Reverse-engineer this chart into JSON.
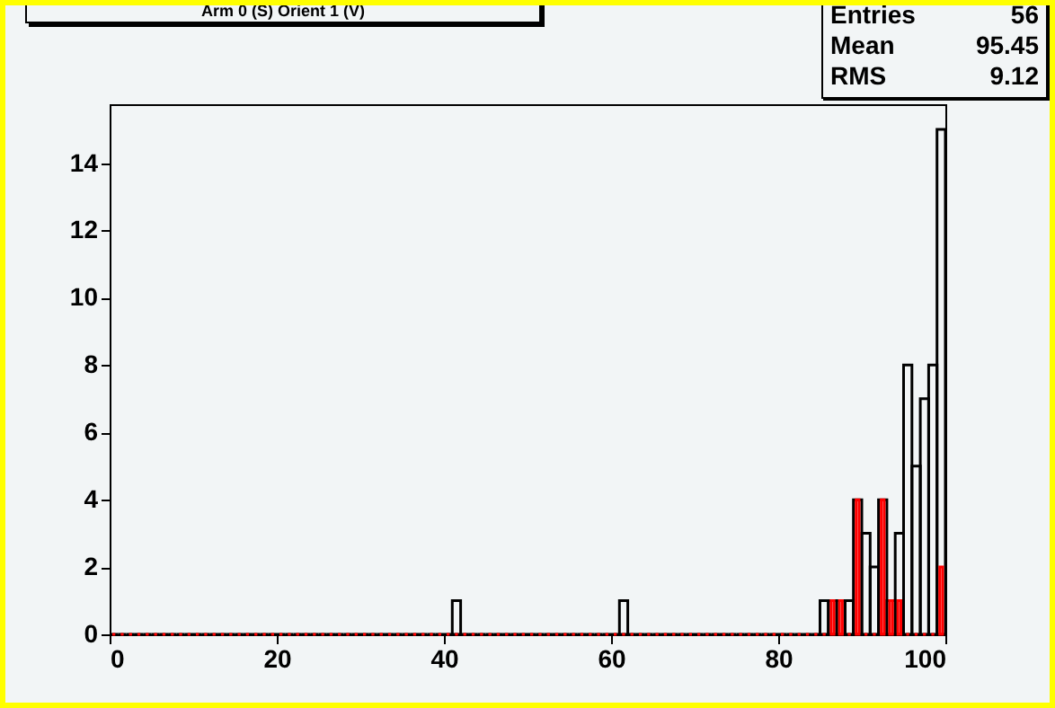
{
  "chart_data": {
    "type": "histogram",
    "title": "Arm 0 (S) Orient 1 (V)",
    "annotations": [
      "Entries 56",
      "Mean 95.45",
      "RMS 9.12"
    ],
    "bins": [
      0,
      1,
      2,
      3,
      4,
      5,
      6,
      7,
      8,
      9,
      10,
      11,
      12,
      13,
      14,
      15,
      16,
      17,
      18,
      19,
      20,
      21,
      22,
      23,
      24,
      25,
      26,
      27,
      28,
      29,
      30,
      31,
      32,
      33,
      34,
      35,
      36,
      37,
      38,
      39,
      40,
      41,
      42,
      43,
      44,
      45,
      46,
      47,
      48,
      49,
      50,
      51,
      52,
      53,
      54,
      55,
      56,
      57,
      58,
      59,
      60,
      61,
      62,
      63,
      64,
      65,
      66,
      67,
      68,
      69,
      70,
      71,
      72,
      73,
      74,
      75,
      76,
      77,
      78,
      79,
      80,
      81,
      82,
      83,
      84,
      85,
      86,
      87,
      88,
      89,
      90,
      91,
      92,
      93,
      94,
      95,
      96,
      97,
      98,
      99,
      100
    ],
    "series": [
      {
        "color": "#000000",
        "values": [
          0,
          0,
          0,
          0,
          0,
          0,
          0,
          0,
          0,
          0,
          0,
          0,
          0,
          0,
          0,
          0,
          0,
          0,
          0,
          0,
          0,
          0,
          0,
          0,
          0,
          0,
          0,
          0,
          0,
          0,
          0,
          0,
          0,
          0,
          0,
          0,
          0,
          0,
          0,
          0,
          0,
          1,
          0,
          0,
          0,
          0,
          0,
          0,
          0,
          0,
          0,
          0,
          0,
          0,
          0,
          0,
          0,
          0,
          0,
          0,
          0,
          1,
          0,
          0,
          0,
          0,
          0,
          0,
          0,
          0,
          0,
          0,
          0,
          0,
          0,
          0,
          0,
          0,
          0,
          0,
          0,
          0,
          0,
          0,
          0,
          1,
          1,
          1,
          1,
          4,
          3,
          2,
          4,
          1,
          3,
          8,
          5,
          7,
          8,
          15
        ]
      },
      {
        "color": "#ff0000",
        "values": [
          0,
          0,
          0,
          0,
          0,
          0,
          0,
          0,
          0,
          0,
          0,
          0,
          0,
          0,
          0,
          0,
          0,
          0,
          0,
          0,
          0,
          0,
          0,
          0,
          0,
          0,
          0,
          0,
          0,
          0,
          0,
          0,
          0,
          0,
          0,
          0,
          0,
          0,
          0,
          0,
          0,
          0,
          0,
          0,
          0,
          0,
          0,
          0,
          0,
          0,
          0,
          0,
          0,
          0,
          0,
          0,
          0,
          0,
          0,
          0,
          0,
          0,
          0,
          0,
          0,
          0,
          0,
          0,
          0,
          0,
          0,
          0,
          0,
          0,
          0,
          0,
          0,
          0,
          0,
          0,
          0,
          0,
          0,
          0,
          0,
          0,
          1,
          1,
          0,
          4,
          0,
          0,
          4,
          1,
          1,
          0,
          0,
          0,
          0,
          2
        ]
      }
    ],
    "xlim": [
      0,
      100
    ],
    "xticks": [
      0,
      20,
      40,
      60,
      80,
      100
    ],
    "ylim": [
      0,
      15.75
    ],
    "yticks": [
      0,
      2,
      4,
      6,
      8,
      10,
      12,
      14
    ]
  }
}
